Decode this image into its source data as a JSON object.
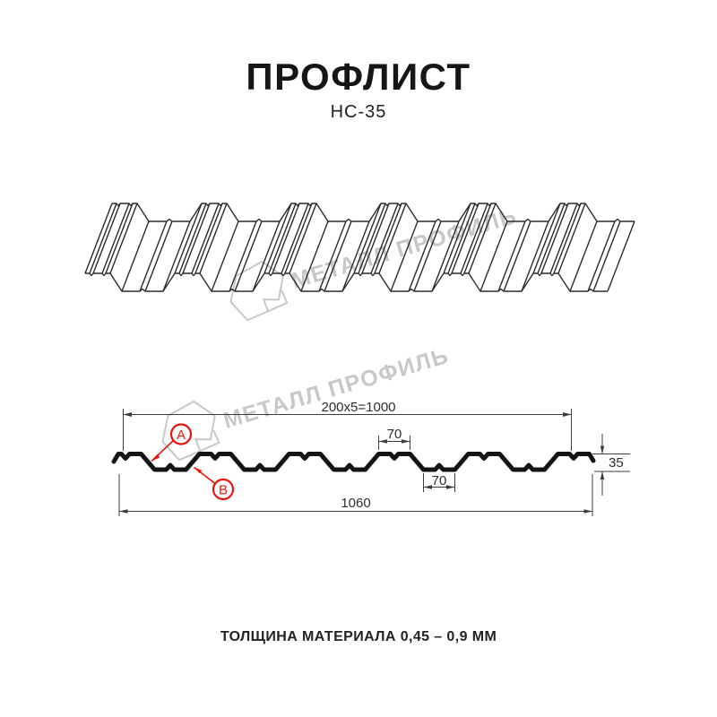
{
  "header": {
    "title": "ПРОФЛИСТ",
    "subtitle": "НС-35"
  },
  "watermark": {
    "text": "МЕТАЛЛ ПРОФИЛЬ"
  },
  "cross_section": {
    "dim_coverage": "200x5=1000",
    "dim_rib_top": "70",
    "dim_rib_bottom": "70",
    "dim_height": "35",
    "dim_overall": "1060",
    "label_a": "А",
    "label_b": "В"
  },
  "footer": {
    "note": "ТОЛЩИНА МАТЕРИАЛА 0,45 – 0,9 ММ"
  },
  "colors": {
    "accent_red": "#e81309",
    "drawing_line": "#2b2b2b",
    "watermark_gray": "#c8c8c8",
    "text": "#161616",
    "background": "#ffffff"
  }
}
